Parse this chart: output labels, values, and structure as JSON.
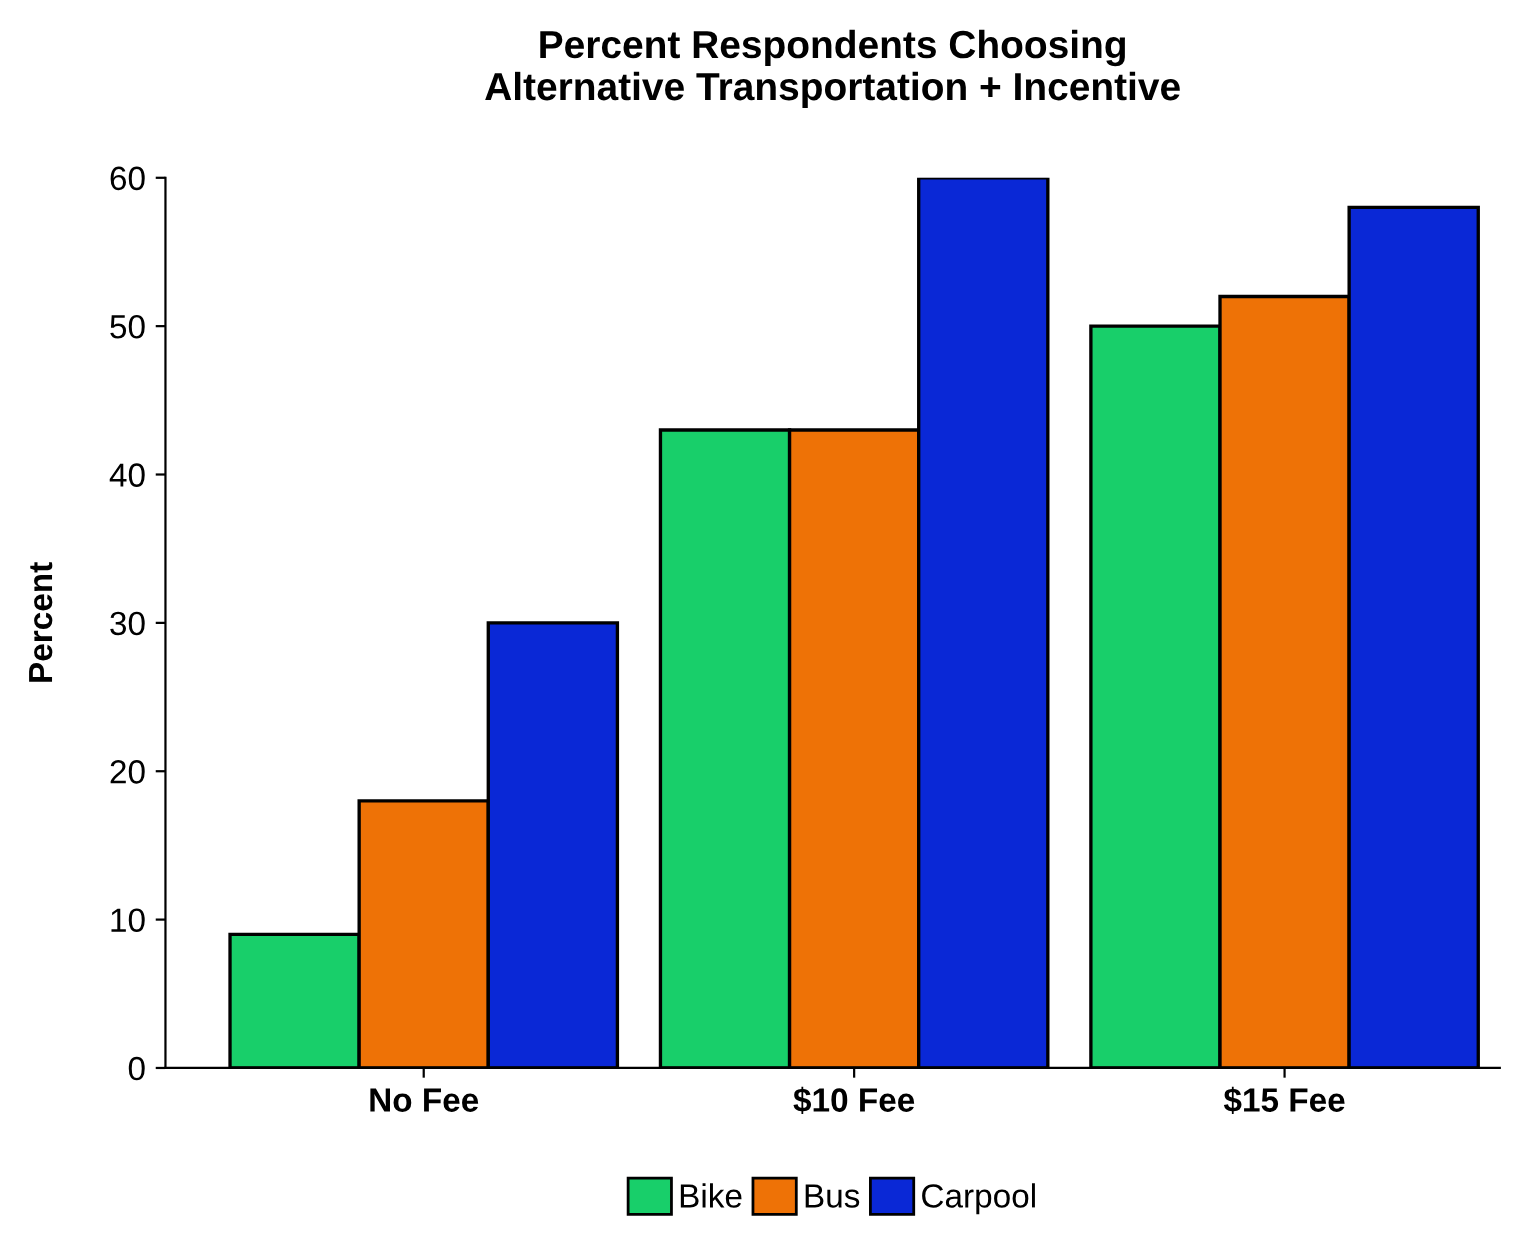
{
  "chart_data": {
    "type": "bar",
    "title": "Percent Respondents Choosing\nAlternative Transportation + Incentive",
    "ylabel": "Percent",
    "categories": [
      "No Fee",
      "$10 Fee",
      "$15 Fee"
    ],
    "series": [
      {
        "name": "Bike",
        "color": "#18cf6a",
        "values": [
          9,
          43,
          50
        ]
      },
      {
        "name": "Bus",
        "color": "#ee7206",
        "values": [
          18,
          43,
          52
        ]
      },
      {
        "name": "Carpool",
        "color": "#0a28d6",
        "values": [
          30,
          60,
          58
        ]
      }
    ],
    "ylim": [
      0,
      60
    ],
    "yticks": [
      0,
      10,
      20,
      30,
      40,
      50,
      60
    ],
    "grid": false,
    "legend": "bottom"
  }
}
